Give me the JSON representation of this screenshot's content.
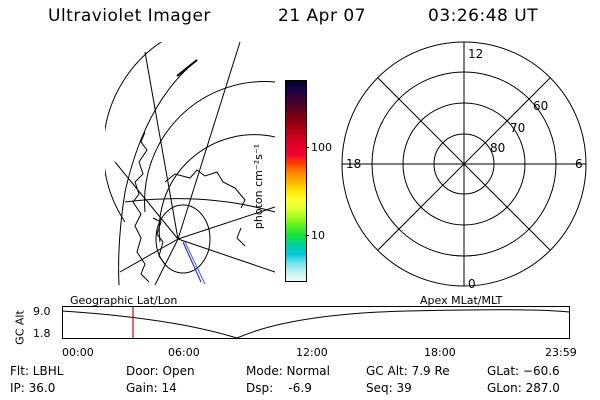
{
  "header": {
    "title": "Ultraviolet Imager",
    "date": "21 Apr 07",
    "time": "03:26:48 UT"
  },
  "colorbar": {
    "unit_label": "photon cm⁻²s⁻¹",
    "ticks": [
      "100",
      "10"
    ],
    "colors": [
      "#000033",
      "#1a0040",
      "#3a0030",
      "#5a0020",
      "#800010",
      "#a00010",
      "#c8001a",
      "#e0002a",
      "#f00030",
      "#ff3a00",
      "#ff8000",
      "#ffb000",
      "#ffe000",
      "#ffff30",
      "#e0ff30",
      "#a0ff20",
      "#50f020",
      "#10e040",
      "#00d0a0",
      "#00c8d8",
      "#70e0e8",
      "#c0f0f0",
      "#f0f8f8"
    ]
  },
  "polar_plot": {
    "mlt_labels": {
      "top": "12",
      "bottom": "0",
      "left": "18",
      "right": "6"
    },
    "lat_labels": [
      "60",
      "70",
      "80"
    ]
  },
  "timeline": {
    "y_axis_label": "GC Alt",
    "y_ticks": [
      "9.0",
      "1.8"
    ],
    "left_caption": "Geographic Lat/Lon",
    "right_caption": "Apex MLat/MLT",
    "x_ticks": [
      "00:00",
      "06:00",
      "12:00",
      "18:00",
      "23:59"
    ],
    "marker_color": "#dd0000"
  },
  "status": {
    "flt": "Flt: LBHL",
    "ip": "IP: 36.0",
    "door": "Door: Open",
    "gain": "Gain: 14",
    "mode": "Mode: Normal",
    "dsp": "Dsp:    -6.9",
    "gc_alt": "GC Alt: 7.9 Re",
    "seq": "Seq: 39",
    "glat": "GLat: −60.6",
    "glon": "GLon: 287.0"
  }
}
